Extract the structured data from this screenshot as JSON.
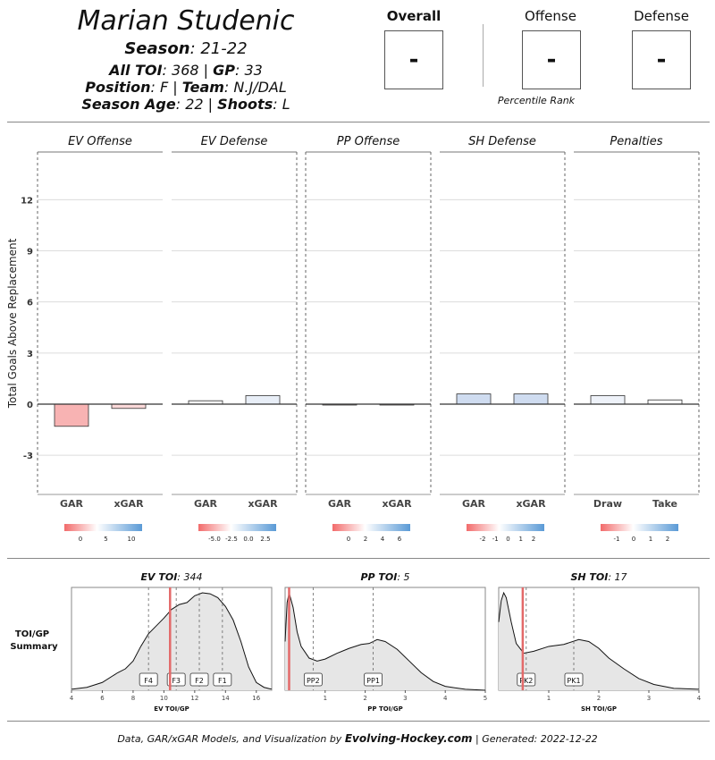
{
  "header": {
    "player_name": "Marian Studenic",
    "season_label": "Season",
    "season_value": ": 21-22",
    "toi_label": "All TOI",
    "toi_value": ": 368 | ",
    "gp_label": "GP",
    "gp_value": ": 33",
    "position_label": "Position",
    "position_value": ": F | ",
    "team_label": "Team",
    "team_value": ": N.J/DAL",
    "age_label": "Season Age",
    "age_value": ": 22 | ",
    "shoots_label": "Shoots",
    "shoots_value": ": L"
  },
  "scores": {
    "overall_label": "Overall",
    "overall_value": "-",
    "offense_label": "Offense",
    "offense_value": "-",
    "defense_label": "Defense",
    "defense_value": "-",
    "caption": "Percentile Rank"
  },
  "chart_data": [
    {
      "type": "bar",
      "ylabel": "Total Goals Above Replacement",
      "ylim": [
        -5.3,
        14.8
      ],
      "yticks": [
        -3,
        0,
        3,
        6,
        9,
        12
      ],
      "panels": [
        {
          "title": "EV Offense",
          "categories": [
            "GAR",
            "xGAR"
          ],
          "values": [
            -1.3,
            -0.25
          ],
          "colors": [
            "#f8b3b3",
            "#fbd9d9"
          ],
          "legend_ticks": [
            "0",
            "5",
            "10"
          ]
        },
        {
          "title": "EV Defense",
          "categories": [
            "GAR",
            "xGAR"
          ],
          "values": [
            0.2,
            0.5
          ],
          "colors": [
            "#f6f6f6",
            "#e8eef7"
          ],
          "legend_ticks": [
            "-5.0",
            "-2.5",
            "0.0",
            "2.5"
          ]
        },
        {
          "title": "PP Offense",
          "categories": [
            "GAR",
            "xGAR"
          ],
          "values": [
            -0.02,
            -0.02
          ],
          "colors": [
            "#f5e4e4",
            "#f5e4e4"
          ],
          "legend_ticks": [
            "0",
            "2",
            "4",
            "6"
          ]
        },
        {
          "title": "SH Defense",
          "categories": [
            "GAR",
            "xGAR"
          ],
          "values": [
            0.6,
            0.6
          ],
          "colors": [
            "#cfdcf0",
            "#cfdcf0"
          ],
          "legend_ticks": [
            "-2",
            "-1",
            "0",
            "1",
            "2"
          ]
        },
        {
          "title": "Penalties",
          "categories": [
            "Draw",
            "Take"
          ],
          "values": [
            0.5,
            0.25
          ],
          "colors": [
            "#eef2f9",
            "#f9f9f9"
          ],
          "legend_ticks": [
            "-1",
            "0",
            "1",
            "2"
          ]
        }
      ]
    },
    {
      "type": "area",
      "row_label": "TOI/GP Summary",
      "panels": [
        {
          "title_bold": "EV TOI",
          "title_value": ": 344",
          "xlabel": "EV TOI/GP",
          "xlim": [
            4,
            17
          ],
          "xticks": [
            4,
            6,
            8,
            10,
            12,
            14,
            16
          ],
          "density_x": [
            4,
            5,
            6,
            7,
            7.5,
            8,
            8.5,
            9,
            9.5,
            10,
            10.5,
            11,
            11.5,
            12,
            12.5,
            13,
            13.5,
            14,
            14.5,
            15,
            15.5,
            16,
            16.5,
            17
          ],
          "density_y": [
            0.01,
            0.03,
            0.08,
            0.18,
            0.22,
            0.3,
            0.45,
            0.58,
            0.66,
            0.74,
            0.83,
            0.88,
            0.9,
            0.97,
            1.0,
            0.99,
            0.95,
            0.86,
            0.72,
            0.5,
            0.24,
            0.08,
            0.03,
            0.01
          ],
          "player_value": 10.4,
          "refs": [
            {
              "label": "F4",
              "x": 9.0
            },
            {
              "label": "F3",
              "x": 10.8
            },
            {
              "label": "F2",
              "x": 12.3
            },
            {
              "label": "F1",
              "x": 13.8
            }
          ]
        },
        {
          "title_bold": "PP TOI",
          "title_value": ": 5",
          "xlabel": "PP TOI/GP",
          "xlim": [
            0,
            5
          ],
          "xticks": [
            1,
            2,
            3,
            4,
            5
          ],
          "density_x": [
            0,
            0.05,
            0.1,
            0.2,
            0.3,
            0.4,
            0.6,
            0.8,
            1.0,
            1.3,
            1.6,
            1.9,
            2.1,
            2.3,
            2.5,
            2.8,
            3.1,
            3.4,
            3.7,
            4.0,
            4.5,
            5.0
          ],
          "density_y": [
            0.5,
            0.9,
            1.0,
            0.85,
            0.6,
            0.45,
            0.33,
            0.3,
            0.32,
            0.38,
            0.43,
            0.47,
            0.48,
            0.52,
            0.5,
            0.42,
            0.3,
            0.18,
            0.09,
            0.04,
            0.01,
            0.0
          ],
          "player_value": 0.1,
          "refs": [
            {
              "label": "PP2",
              "x": 0.7
            },
            {
              "label": "PP1",
              "x": 2.2
            }
          ]
        },
        {
          "title_bold": "SH TOI",
          "title_value": ": 17",
          "xlabel": "SH TOI/GP",
          "xlim": [
            0,
            4
          ],
          "xticks": [
            1,
            2,
            3,
            4
          ],
          "density_x": [
            0,
            0.05,
            0.1,
            0.15,
            0.25,
            0.35,
            0.5,
            0.7,
            1.0,
            1.3,
            1.6,
            1.8,
            2.0,
            2.2,
            2.5,
            2.8,
            3.1,
            3.5,
            4.0
          ],
          "density_y": [
            0.7,
            0.92,
            1.0,
            0.95,
            0.7,
            0.48,
            0.38,
            0.4,
            0.45,
            0.47,
            0.52,
            0.5,
            0.43,
            0.33,
            0.22,
            0.12,
            0.06,
            0.02,
            0.01
          ],
          "player_value": 0.48,
          "refs": [
            {
              "label": "PK2",
              "x": 0.55
            },
            {
              "label": "PK1",
              "x": 1.5
            }
          ]
        }
      ]
    }
  ],
  "footer": {
    "prefix": "Data, GAR/xGAR Models, and Visualization by ",
    "brand": "Evolving-Hockey.com",
    "suffix": " | Generated: 2022-12-22"
  }
}
